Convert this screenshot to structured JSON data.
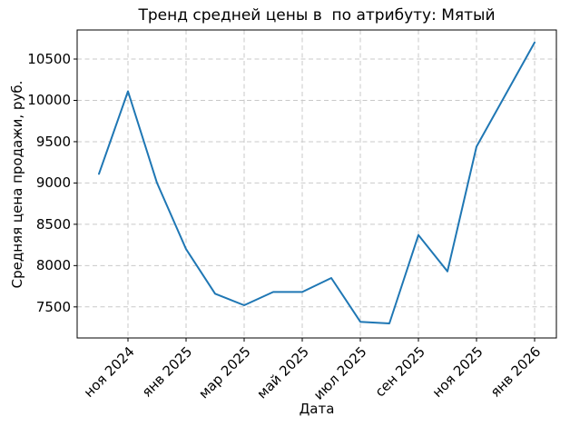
{
  "chart_data": {
    "type": "line",
    "title": "Тренд средней цены в  по атрибуту: Мятый",
    "xlabel": "Дата",
    "ylabel": "Средняя цена продажи, руб.",
    "x": [
      "окт 2024",
      "ноя 2024",
      "дек 2024",
      "янв 2025",
      "фев 2025",
      "мар 2025",
      "апр 2025",
      "май 2025",
      "июн 2025",
      "июл 2025",
      "авг 2025",
      "сен 2025",
      "окт 2025",
      "ноя 2025",
      "дек 2025",
      "янв 2026"
    ],
    "values": [
      9110,
      10110,
      9000,
      8200,
      7660,
      7520,
      7680,
      7680,
      7850,
      7320,
      7300,
      8370,
      7930,
      9440,
      10070,
      10700
    ],
    "x_tick_labels": [
      "ноя 2024",
      "янв 2025",
      "мар 2025",
      "май 2025",
      "июл 2025",
      "сен 2025",
      "ноя 2025",
      "янв 2026"
    ],
    "x_tick_month_index": [
      1,
      3,
      5,
      7,
      9,
      11,
      13,
      15
    ],
    "y_ticks": [
      7500,
      8000,
      8500,
      9000,
      9500,
      10000,
      10500
    ],
    "ylim": [
      7124,
      10852
    ],
    "xlim_months": [
      -0.75,
      15.75
    ],
    "grid": true,
    "legend": null,
    "line_color": "#1f77b4",
    "grid_color": "#c9c9c9",
    "spine_color": "#000000"
  }
}
